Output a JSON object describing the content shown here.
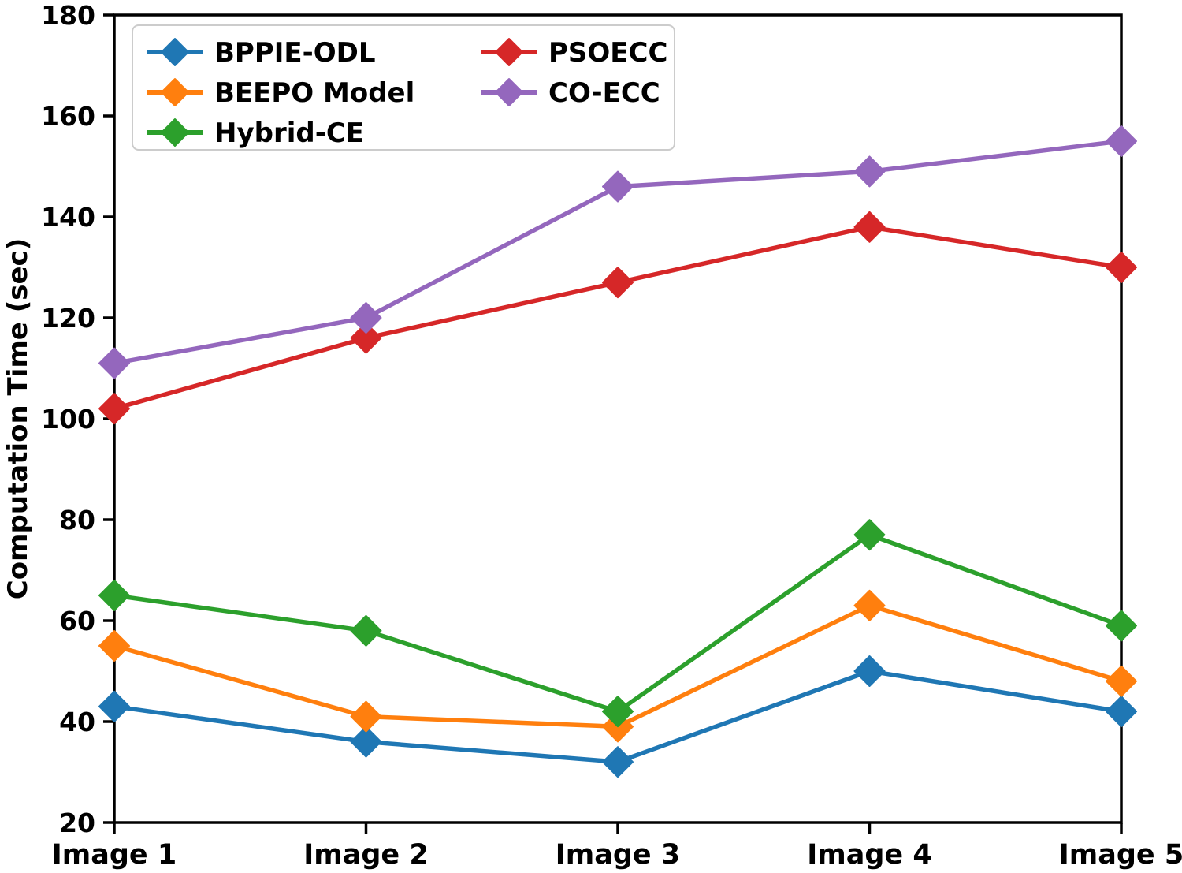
{
  "figure": {
    "background": "#ffffff",
    "text_color": "#000000",
    "spine_color": "#000000"
  },
  "chart_data": {
    "type": "line",
    "title": "",
    "xlabel": "",
    "ylabel": "Computation Time (sec)",
    "categories": [
      "Image 1",
      "Image 2",
      "Image 3",
      "Image 4",
      "Image 5"
    ],
    "series": [
      {
        "name": "BPPIE-ODL",
        "color": "#1f77b4",
        "values": [
          43,
          36,
          32,
          50,
          42
        ]
      },
      {
        "name": "BEEPO Model",
        "color": "#ff7f0e",
        "values": [
          55,
          41,
          39,
          63,
          48
        ]
      },
      {
        "name": "Hybrid-CE",
        "color": "#2ca02c",
        "values": [
          65,
          58,
          42,
          77,
          59
        ]
      },
      {
        "name": "PSOECC",
        "color": "#d62728",
        "values": [
          102,
          116,
          127,
          138,
          130
        ]
      },
      {
        "name": "CO-ECC",
        "color": "#9467bd",
        "values": [
          111,
          120,
          146,
          149,
          155
        ]
      }
    ],
    "ylim": [
      20,
      180
    ],
    "yticks": [
      20,
      40,
      60,
      80,
      100,
      120,
      140,
      160,
      180
    ],
    "grid": false,
    "marker": "diamond",
    "legend_position": "upper left",
    "legend_columns": [
      [
        "BPPIE-ODL",
        "BEEPO Model",
        "Hybrid-CE"
      ],
      [
        "PSOECC",
        "CO-ECC"
      ]
    ]
  }
}
